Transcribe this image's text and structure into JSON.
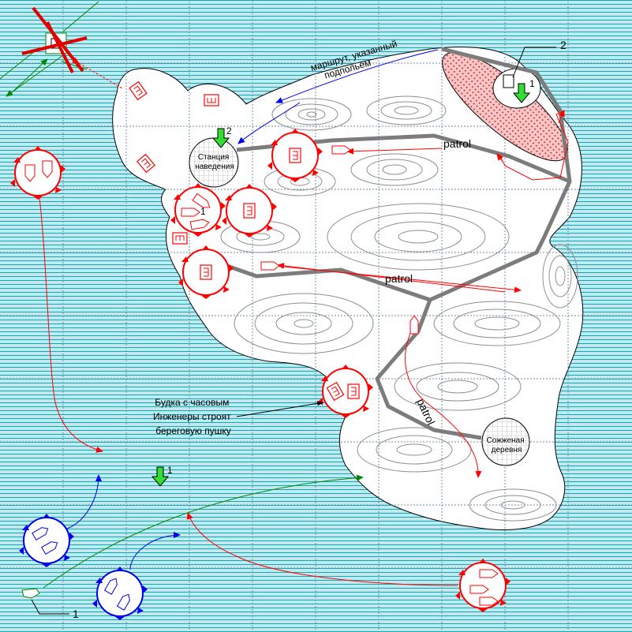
{
  "colors": {
    "sea": "#bfeaf0",
    "sea_lines": "#16a6b6",
    "grid": "#6a8fa8",
    "island": "#ffffff",
    "contour": "#8f8f8f",
    "patrol": "#7c7c7c",
    "red_unit": "#ff0000",
    "blue_unit": "#0000ee",
    "green": "#008800",
    "marker_green": "#33dd33",
    "highlight_fill": "#f7c6c6"
  },
  "labels": {
    "route": [
      "маршрут, указанный",
      "подпольем"
    ],
    "station": [
      "Станция",
      "наведения"
    ],
    "booth": [
      "Будка с часовым",
      "Инженеры строят",
      "береговую пушку"
    ],
    "burnt": [
      "Сожженая",
      "деревня"
    ],
    "patrol": "patrol",
    "num1": "1",
    "num2": "2"
  },
  "icons": {
    "target": "crossed-out-unit-icon",
    "descent": "down-arrow-marker-icon",
    "guard": "shield-unit-icon",
    "ship": "ship-icon"
  }
}
